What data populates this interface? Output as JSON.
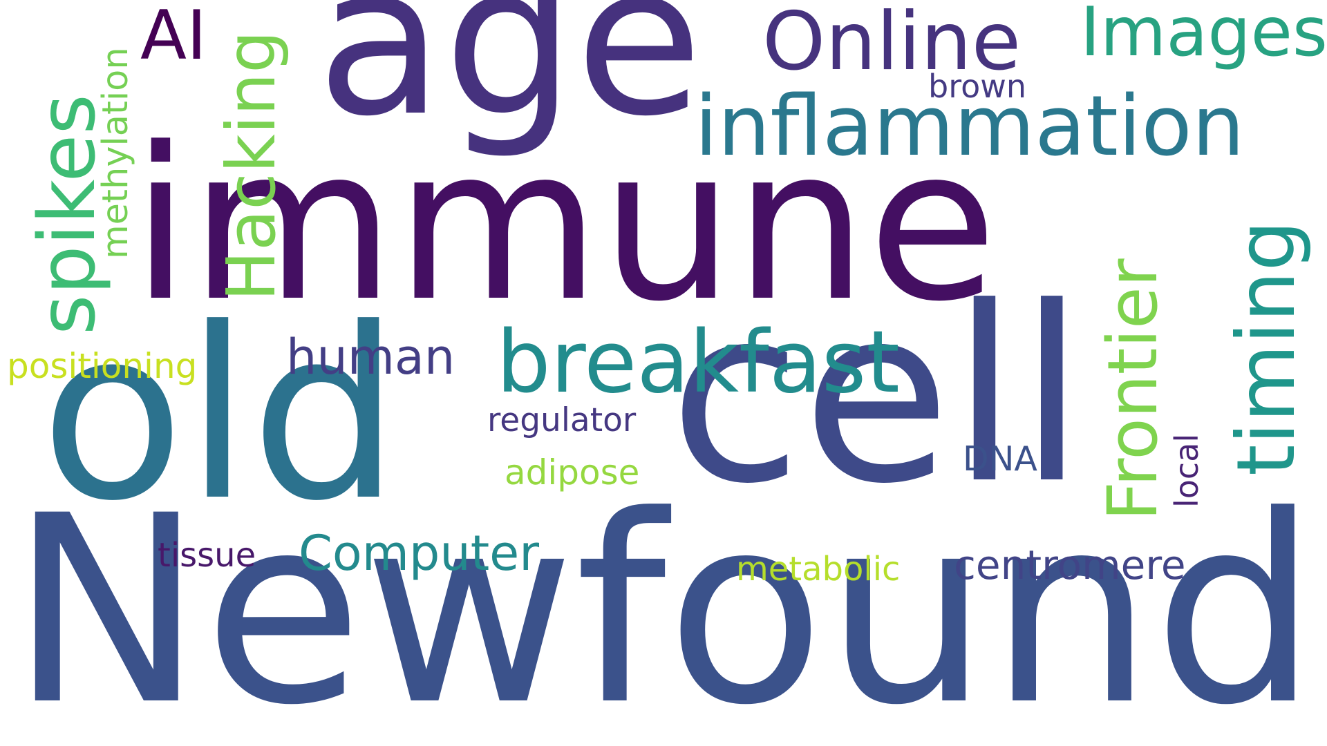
{
  "words": [
    {
      "key": "immune",
      "text": "immune",
      "color": "#440f62",
      "orientation": "horizontal"
    },
    {
      "key": "newfound",
      "text": "Newfound",
      "color": "#3b528b",
      "orientation": "horizontal"
    },
    {
      "key": "cell",
      "text": "cell",
      "color": "#3e4a89",
      "orientation": "horizontal"
    },
    {
      "key": "old",
      "text": "old",
      "color": "#2c728e",
      "orientation": "horizontal"
    },
    {
      "key": "age",
      "text": "age",
      "color": "#46327e",
      "orientation": "horizontal"
    },
    {
      "key": "inflammation",
      "text": "inflammation",
      "color": "#2a788e",
      "orientation": "horizontal"
    },
    {
      "key": "breakfast",
      "text": "breakfast",
      "color": "#228c8d",
      "orientation": "horizontal"
    },
    {
      "key": "online",
      "text": "Online",
      "color": "#46337e",
      "orientation": "horizontal"
    },
    {
      "key": "images",
      "text": "Images",
      "color": "#27a281",
      "orientation": "horizontal"
    },
    {
      "key": "spikes",
      "text": "spikes",
      "color": "#3dbc74",
      "orientation": "vertical"
    },
    {
      "key": "hacking",
      "text": "Hacking",
      "color": "#7ad151",
      "orientation": "vertical"
    },
    {
      "key": "timing",
      "text": "timing",
      "color": "#1f968b",
      "orientation": "vertical"
    },
    {
      "key": "frontier",
      "text": "Frontier",
      "color": "#7fd34e",
      "orientation": "vertical"
    },
    {
      "key": "ai",
      "text": "AI",
      "color": "#440154",
      "orientation": "horizontal"
    },
    {
      "key": "methylation",
      "text": "methylation",
      "color": "#75d054",
      "orientation": "vertical"
    },
    {
      "key": "human",
      "text": "human",
      "color": "#433e85",
      "orientation": "horizontal"
    },
    {
      "key": "positioning",
      "text": "positioning",
      "color": "#c8e020",
      "orientation": "horizontal"
    },
    {
      "key": "computer",
      "text": "Computer",
      "color": "#238a8d",
      "orientation": "horizontal"
    },
    {
      "key": "centromere",
      "text": "centromere",
      "color": "#414487",
      "orientation": "horizontal"
    },
    {
      "key": "regulator",
      "text": "regulator",
      "color": "#453781",
      "orientation": "horizontal"
    },
    {
      "key": "adipose",
      "text": "adipose",
      "color": "#95d840",
      "orientation": "horizontal"
    },
    {
      "key": "metabolic",
      "text": "metabolic",
      "color": "#b5de2b",
      "orientation": "horizontal"
    },
    {
      "key": "tissue",
      "text": "tissue",
      "color": "#48186a",
      "orientation": "horizontal"
    },
    {
      "key": "dna",
      "text": "DNA",
      "color": "#3b518b",
      "orientation": "horizontal"
    },
    {
      "key": "brown",
      "text": "brown",
      "color": "#443a83",
      "orientation": "horizontal"
    },
    {
      "key": "local",
      "text": "local",
      "color": "#482475",
      "orientation": "vertical"
    }
  ]
}
